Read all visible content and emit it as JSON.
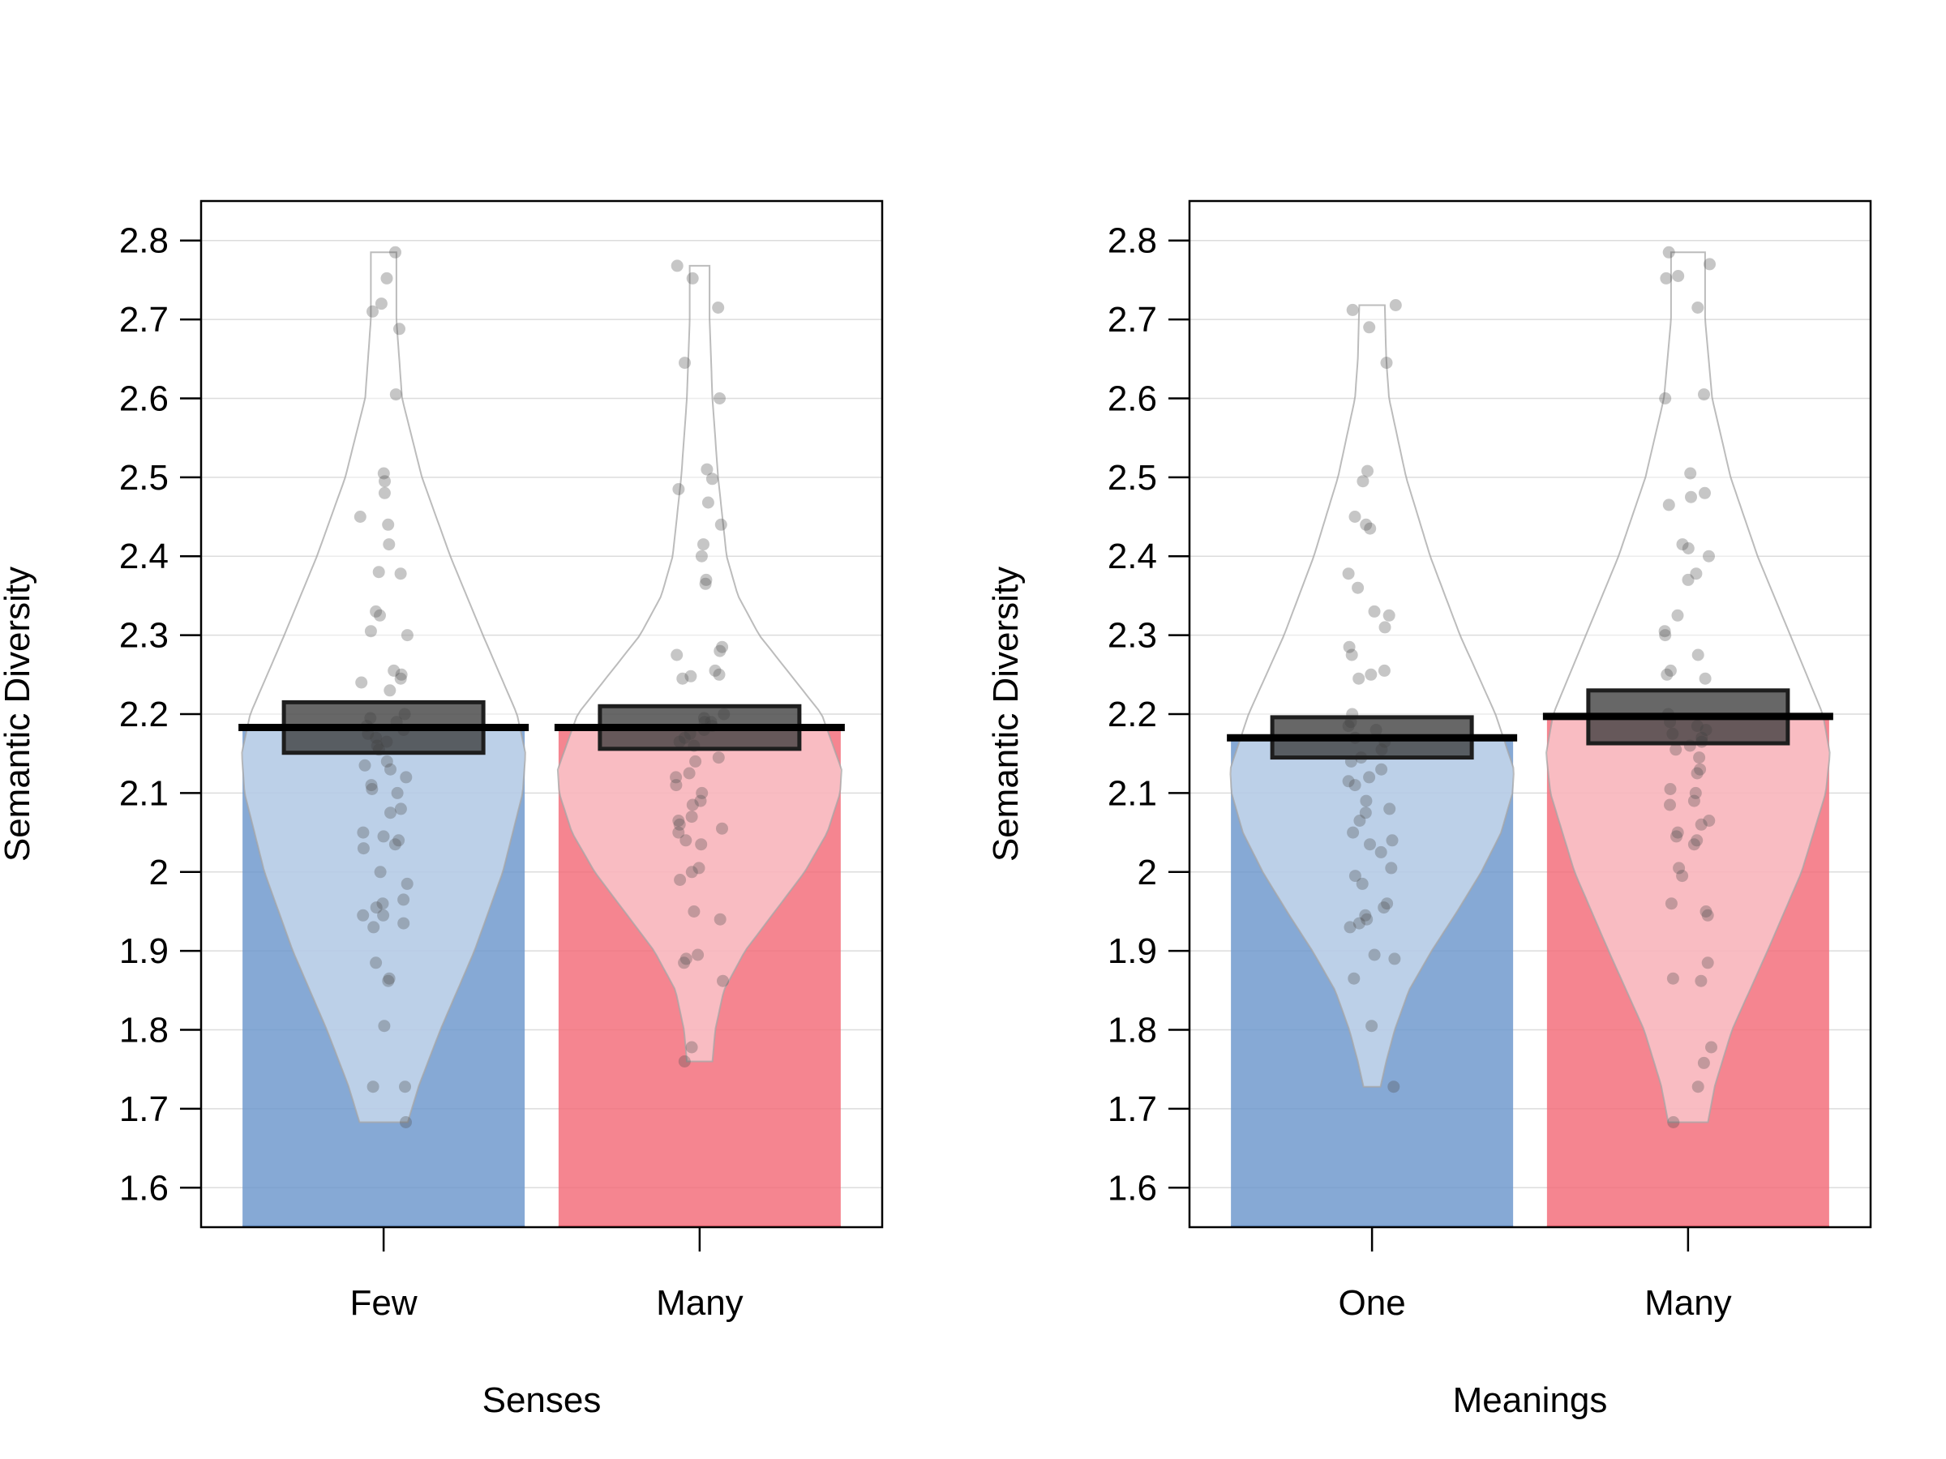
{
  "chart_data": [
    {
      "type": "pirate",
      "xlabel": "Senses",
      "ylabel": "Semantic Diversity",
      "ylim": [
        1.55,
        2.85
      ],
      "yticks": [
        1.6,
        1.7,
        1.8,
        1.9,
        2,
        2.1,
        2.2,
        2.3,
        2.4,
        2.5,
        2.6,
        2.7,
        2.8
      ],
      "ytick_labels": [
        "1.6",
        "1.7",
        "1.8",
        "1.9",
        "2",
        "2.1",
        "2.2",
        "2.3",
        "2.4",
        "2.5",
        "2.6",
        "2.7",
        "2.8"
      ],
      "grid": true,
      "groups": [
        {
          "name": "Few",
          "color": "#6b96cc",
          "mean": 2.183,
          "ci": [
            2.151,
            2.215
          ],
          "range": [
            1.683,
            2.785
          ],
          "density": [
            [
              1.683,
              0.17
            ],
            [
              1.73,
              0.25
            ],
            [
              1.8,
              0.4
            ],
            [
              1.9,
              0.64
            ],
            [
              2.0,
              0.84
            ],
            [
              2.1,
              0.98
            ],
            [
              2.15,
              1.0
            ],
            [
              2.2,
              0.94
            ],
            [
              2.3,
              0.7
            ],
            [
              2.4,
              0.47
            ],
            [
              2.5,
              0.27
            ],
            [
              2.6,
              0.13
            ],
            [
              2.7,
              0.09
            ],
            [
              2.785,
              0.09
            ]
          ],
          "points": [
            2.785,
            2.752,
            2.72,
            2.71,
            2.688,
            2.605,
            2.505,
            2.495,
            2.48,
            2.45,
            2.44,
            2.415,
            2.38,
            2.378,
            2.33,
            2.325,
            2.305,
            2.3,
            2.255,
            2.25,
            2.245,
            2.24,
            2.23,
            2.2,
            2.195,
            2.19,
            2.185,
            2.18,
            2.175,
            2.17,
            2.165,
            2.16,
            2.155,
            2.14,
            2.135,
            2.13,
            2.12,
            2.11,
            2.105,
            2.1,
            2.08,
            2.075,
            2.05,
            2.045,
            2.04,
            2.035,
            2.03,
            2.0,
            1.985,
            1.965,
            1.96,
            1.955,
            1.945,
            1.945,
            1.935,
            1.93,
            1.885,
            1.865,
            1.862,
            1.805,
            1.728,
            1.728,
            1.683
          ]
        },
        {
          "name": "Many",
          "color": "#f36a78",
          "mean": 2.183,
          "ci": [
            2.156,
            2.21
          ],
          "range": [
            1.76,
            2.768
          ],
          "density": [
            [
              1.76,
              0.09
            ],
            [
              1.8,
              0.11
            ],
            [
              1.85,
              0.17
            ],
            [
              1.9,
              0.32
            ],
            [
              1.95,
              0.53
            ],
            [
              2.0,
              0.74
            ],
            [
              2.05,
              0.9
            ],
            [
              2.1,
              0.99
            ],
            [
              2.13,
              1.0
            ],
            [
              2.2,
              0.86
            ],
            [
              2.25,
              0.64
            ],
            [
              2.3,
              0.42
            ],
            [
              2.35,
              0.27
            ],
            [
              2.4,
              0.19
            ],
            [
              2.5,
              0.13
            ],
            [
              2.6,
              0.09
            ],
            [
              2.7,
              0.07
            ],
            [
              2.768,
              0.07
            ]
          ],
          "points": [
            2.768,
            2.752,
            2.715,
            2.645,
            2.6,
            2.51,
            2.498,
            2.485,
            2.468,
            2.44,
            2.415,
            2.4,
            2.37,
            2.365,
            2.285,
            2.28,
            2.275,
            2.255,
            2.25,
            2.248,
            2.245,
            2.2,
            2.195,
            2.19,
            2.19,
            2.185,
            2.18,
            2.175,
            2.17,
            2.165,
            2.16,
            2.145,
            2.14,
            2.125,
            2.12,
            2.11,
            2.1,
            2.09,
            2.085,
            2.07,
            2.065,
            2.06,
            2.055,
            2.05,
            2.04,
            2.035,
            2.005,
            2.0,
            1.99,
            1.95,
            1.94,
            1.895,
            1.89,
            1.885,
            1.862,
            1.778,
            1.76
          ]
        }
      ]
    },
    {
      "type": "pirate",
      "xlabel": "Meanings",
      "ylabel": "Semantic Diversity",
      "ylim": [
        1.55,
        2.85
      ],
      "yticks": [
        1.6,
        1.7,
        1.8,
        1.9,
        2,
        2.1,
        2.2,
        2.3,
        2.4,
        2.5,
        2.6,
        2.7,
        2.8
      ],
      "ytick_labels": [
        "1.6",
        "1.7",
        "1.8",
        "1.9",
        "2",
        "2.1",
        "2.2",
        "2.3",
        "2.4",
        "2.5",
        "2.6",
        "2.7",
        "2.8"
      ],
      "grid": true,
      "groups": [
        {
          "name": "One",
          "color": "#6b96cc",
          "mean": 2.17,
          "ci": [
            2.145,
            2.196
          ],
          "range": [
            1.728,
            2.718
          ],
          "density": [
            [
              1.728,
              0.06
            ],
            [
              1.76,
              0.1
            ],
            [
              1.8,
              0.16
            ],
            [
              1.85,
              0.26
            ],
            [
              1.9,
              0.42
            ],
            [
              1.95,
              0.6
            ],
            [
              2.0,
              0.77
            ],
            [
              2.05,
              0.91
            ],
            [
              2.1,
              0.99
            ],
            [
              2.13,
              1.0
            ],
            [
              2.2,
              0.87
            ],
            [
              2.3,
              0.62
            ],
            [
              2.4,
              0.41
            ],
            [
              2.5,
              0.24
            ],
            [
              2.6,
              0.12
            ],
            [
              2.65,
              0.1
            ],
            [
              2.718,
              0.09
            ]
          ],
          "points": [
            2.718,
            2.712,
            2.69,
            2.645,
            2.508,
            2.495,
            2.45,
            2.44,
            2.435,
            2.378,
            2.36,
            2.33,
            2.325,
            2.31,
            2.285,
            2.275,
            2.255,
            2.25,
            2.245,
            2.2,
            2.19,
            2.185,
            2.18,
            2.17,
            2.165,
            2.155,
            2.145,
            2.14,
            2.13,
            2.12,
            2.115,
            2.11,
            2.09,
            2.08,
            2.075,
            2.065,
            2.05,
            2.04,
            2.035,
            2.025,
            2.005,
            1.995,
            1.985,
            1.96,
            1.955,
            1.945,
            1.94,
            1.935,
            1.93,
            1.895,
            1.89,
            1.865,
            1.805,
            1.728
          ]
        },
        {
          "name": "Many",
          "color": "#f36a78",
          "mean": 2.197,
          "ci": [
            2.163,
            2.23
          ],
          "range": [
            1.683,
            2.785
          ],
          "density": [
            [
              1.683,
              0.14
            ],
            [
              1.73,
              0.19
            ],
            [
              1.8,
              0.31
            ],
            [
              1.9,
              0.56
            ],
            [
              2.0,
              0.8
            ],
            [
              2.1,
              0.97
            ],
            [
              2.15,
              1.0
            ],
            [
              2.2,
              0.95
            ],
            [
              2.3,
              0.72
            ],
            [
              2.4,
              0.49
            ],
            [
              2.5,
              0.3
            ],
            [
              2.6,
              0.17
            ],
            [
              2.7,
              0.12
            ],
            [
              2.785,
              0.12
            ]
          ],
          "points": [
            2.785,
            2.77,
            2.755,
            2.752,
            2.715,
            2.605,
            2.6,
            2.505,
            2.48,
            2.475,
            2.465,
            2.415,
            2.41,
            2.4,
            2.378,
            2.37,
            2.325,
            2.305,
            2.3,
            2.275,
            2.255,
            2.25,
            2.245,
            2.2,
            2.19,
            2.185,
            2.18,
            2.175,
            2.17,
            2.165,
            2.16,
            2.155,
            2.145,
            2.13,
            2.125,
            2.105,
            2.1,
            2.09,
            2.085,
            2.065,
            2.06,
            2.05,
            2.045,
            2.04,
            2.035,
            2.005,
            1.995,
            1.96,
            1.95,
            1.945,
            1.885,
            1.865,
            1.862,
            1.778,
            1.758,
            1.728,
            1.683
          ]
        }
      ]
    }
  ]
}
